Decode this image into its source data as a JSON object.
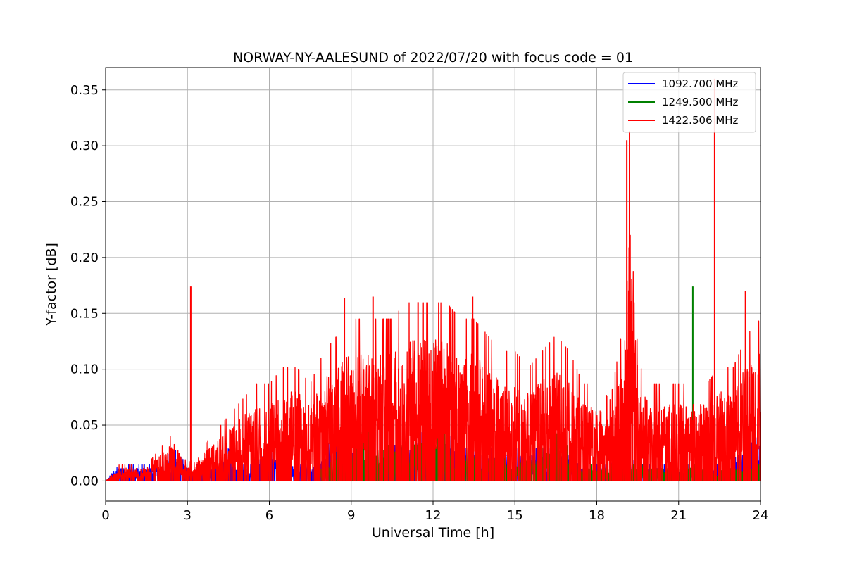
{
  "chart_data": {
    "type": "line",
    "title": "NORWAY-NY-AALESUND of 2022/07/20 with focus code = 01",
    "xlabel": "Universal Time [h]",
    "ylabel": "Y-factor [dB]",
    "xlim": [
      0,
      24
    ],
    "ylim": [
      -0.018,
      0.37
    ],
    "xticks": [
      0,
      3,
      6,
      9,
      12,
      15,
      18,
      21,
      24
    ],
    "yticks": [
      0.0,
      0.05,
      0.1,
      0.15,
      0.2,
      0.25,
      0.3,
      0.35
    ],
    "ytick_labels": [
      "0.00",
      "0.05",
      "0.10",
      "0.15",
      "0.20",
      "0.25",
      "0.30",
      "0.35"
    ],
    "grid": true,
    "legend_position": "top-right",
    "series": [
      {
        "name": "1092.700 MHz",
        "color": "#0000ff",
        "envelope": {
          "x": [
            0.0,
            0.5,
            1.0,
            1.5,
            2.0,
            2.5,
            3.0,
            3.5,
            4.0,
            4.5,
            5.0,
            5.5,
            6.0,
            6.5,
            7.0,
            7.5,
            8.0,
            8.5,
            9.0,
            9.5,
            10.0,
            10.5,
            11.0,
            11.5,
            12.0,
            12.5,
            13.0,
            13.5,
            14.0,
            14.5,
            15.0,
            15.5,
            16.0,
            16.5,
            17.0,
            17.5,
            18.0,
            18.5,
            19.0,
            19.5,
            20.0,
            20.5,
            21.0,
            21.5,
            22.0,
            22.5,
            23.0,
            23.5,
            24.0
          ],
          "y": [
            0.0,
            0.01,
            0.01,
            0.01,
            0.01,
            0.02,
            0.01,
            0.01,
            0.01,
            0.02,
            0.01,
            0.01,
            0.02,
            0.02,
            0.01,
            0.01,
            0.02,
            0.03,
            0.03,
            0.02,
            0.02,
            0.02,
            0.03,
            0.03,
            0.03,
            0.03,
            0.02,
            0.02,
            0.02,
            0.02,
            0.02,
            0.02,
            0.02,
            0.02,
            0.02,
            0.01,
            0.01,
            0.01,
            0.02,
            0.01,
            0.01,
            0.01,
            0.01,
            0.01,
            0.01,
            0.01,
            0.02,
            0.02,
            0.03
          ]
        }
      },
      {
        "name": "1249.500 MHz",
        "color": "#008000",
        "envelope": {
          "x": [
            7.7,
            8.0,
            8.5,
            9.0,
            9.5,
            10.0,
            10.5,
            11.0,
            11.5,
            12.0,
            12.5,
            13.0,
            13.5,
            14.0,
            14.5,
            15.0,
            15.5,
            16.0,
            16.5,
            17.0,
            17.5,
            18.0,
            18.5,
            19.0,
            19.5,
            20.0,
            20.5,
            21.0,
            21.5,
            22.0,
            22.5,
            23.0,
            23.5,
            24.0
          ],
          "y": [
            0.01,
            0.01,
            0.02,
            0.03,
            0.03,
            0.03,
            0.03,
            0.03,
            0.03,
            0.03,
            0.03,
            0.02,
            0.02,
            0.02,
            0.02,
            0.01,
            0.02,
            0.02,
            0.03,
            0.02,
            0.01,
            0.01,
            0.01,
            0.01,
            0.01,
            0.01,
            0.01,
            0.01,
            0.01,
            0.01,
            0.01,
            0.01,
            0.01,
            0.01
          ]
        },
        "spikes": [
          {
            "x": 21.52,
            "y": 0.174
          }
        ]
      },
      {
        "name": "1422.506 MHz",
        "color": "#ff0000",
        "envelope": {
          "x": [
            0.0,
            0.5,
            1.0,
            1.5,
            2.0,
            2.5,
            3.0,
            3.5,
            4.0,
            4.5,
            5.0,
            5.5,
            6.0,
            6.5,
            7.0,
            7.5,
            8.0,
            8.5,
            9.0,
            9.5,
            10.0,
            10.5,
            11.0,
            11.5,
            12.0,
            12.5,
            13.0,
            13.5,
            14.0,
            14.5,
            15.0,
            15.5,
            16.0,
            16.5,
            17.0,
            17.5,
            18.0,
            18.5,
            19.0,
            19.2,
            19.4,
            19.6,
            20.0,
            20.5,
            21.0,
            21.5,
            22.0,
            22.5,
            23.0,
            23.5,
            24.0
          ],
          "y": [
            0.0,
            0.01,
            0.01,
            0.01,
            0.02,
            0.03,
            0.01,
            0.02,
            0.03,
            0.04,
            0.05,
            0.06,
            0.06,
            0.07,
            0.07,
            0.06,
            0.08,
            0.09,
            0.1,
            0.1,
            0.1,
            0.1,
            0.11,
            0.11,
            0.11,
            0.11,
            0.1,
            0.1,
            0.09,
            0.08,
            0.08,
            0.07,
            0.08,
            0.09,
            0.08,
            0.06,
            0.06,
            0.05,
            0.1,
            0.22,
            0.14,
            0.07,
            0.06,
            0.06,
            0.06,
            0.06,
            0.06,
            0.07,
            0.07,
            0.09,
            0.1
          ]
        },
        "spikes": [
          {
            "x": 3.12,
            "y": 0.174
          },
          {
            "x": 8.75,
            "y": 0.164
          },
          {
            "x": 9.8,
            "y": 0.165
          },
          {
            "x": 11.45,
            "y": 0.16
          },
          {
            "x": 13.45,
            "y": 0.165
          },
          {
            "x": 19.1,
            "y": 0.305
          },
          {
            "x": 22.32,
            "y": 0.36
          },
          {
            "x": 23.45,
            "y": 0.17
          }
        ]
      }
    ]
  }
}
